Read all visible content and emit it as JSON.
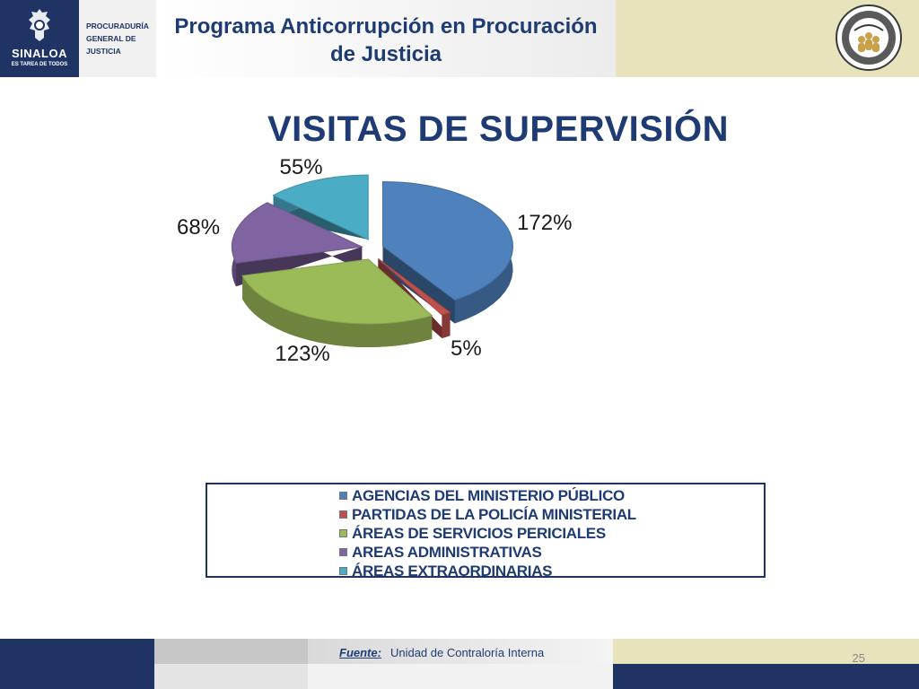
{
  "header": {
    "state_name": "SINALOA",
    "state_slogan": "ES TAREA DE TODOS",
    "agency_name": "PROCURADURÍA\nGENERAL DE\nJUSTICIA",
    "program_title_line1": "Programa Anticorrupción en Procuración",
    "program_title_line2": "de Justicia"
  },
  "slide": {
    "title": "VISITAS DE SUPERVISIÓN",
    "page_number": "25"
  },
  "footer": {
    "source_label": "Fuente:",
    "source_value": "Unidad de Contraloría Interna"
  },
  "chart_data": {
    "type": "pie",
    "style": "3d-exploded",
    "legend_position": "bottom",
    "slices": [
      {
        "label": "AGENCIAS DEL MINISTERIO PÚBLICO",
        "value": 172,
        "display": "172%",
        "color": "#4f81bd"
      },
      {
        "label": "PARTIDAS DE LA POLICÍA MINISTERIAL",
        "value": 5,
        "display": "5%",
        "color": "#c0504d"
      },
      {
        "label": "ÁREAS DE SERVICIOS PERICIALES",
        "value": 123,
        "display": "123%",
        "color": "#9bbb59"
      },
      {
        "label": "AREAS ADMINISTRATIVAS",
        "value": 68,
        "display": "68%",
        "color": "#8064a2"
      },
      {
        "label": "ÁREAS EXTRAORDINARIAS",
        "value": 55,
        "display": "55%",
        "color": "#4bacc6"
      }
    ]
  }
}
